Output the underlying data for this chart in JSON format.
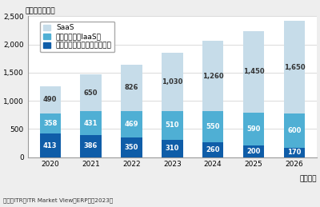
{
  "years": [
    "2020",
    "2021",
    "2022",
    "2023",
    "2024",
    "2025",
    "2026"
  ],
  "saas": [
    490,
    650,
    826,
    1030,
    1260,
    1450,
    1650
  ],
  "iaas": [
    358,
    431,
    469,
    510,
    550,
    590,
    600
  ],
  "onprem": [
    413,
    386,
    350,
    310,
    260,
    200,
    170
  ],
  "color_saas": "#c6dce9",
  "color_iaas": "#4fafd4",
  "color_onprem": "#0f5da8",
  "ylabel_top": "（単位：億円）",
  "xlabel_bottom": "（年度）",
  "ylim": [
    0,
    2500
  ],
  "yticks": [
    0,
    500,
    1000,
    1500,
    2000,
    2500
  ],
  "legend_saas": "SaaS",
  "legend_iaas": "パッケージ（IaaS）",
  "legend_onprem": "パッケージ（オンプレミス）",
  "footnote1": "出典：ITR『ITR Market View：ERP市噗2023』",
  "background_color": "#eeeeee",
  "plot_background": "#ffffff",
  "fontsize_label": 6.5,
  "fontsize_tick": 6.5,
  "fontsize_bar": 6.0,
  "fontsize_legend": 6.5,
  "fontsize_footnote": 5.2,
  "bar_width": 0.52
}
